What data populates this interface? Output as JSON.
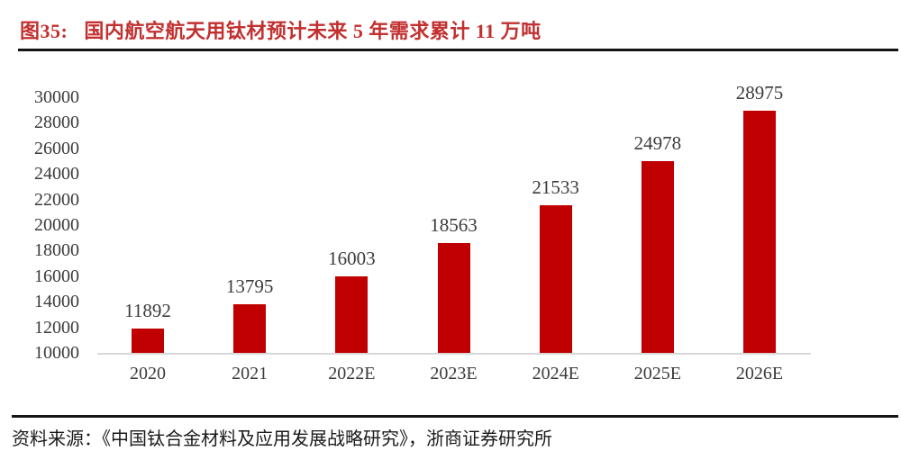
{
  "figure": {
    "label": "图35:",
    "title": "国内航空航天用钛材预计未来 5 年需求累计 11 万吨"
  },
  "source": {
    "prefix": "资料来源：",
    "text": "《中国钛合金材料及应用发展战略研究》，浙商证券研究所"
  },
  "colors": {
    "bar": "#c00000",
    "title_red": "#c23030",
    "axis_line": "#d8d8d8",
    "label_text": "#3b3b3b",
    "rule": "#141414"
  },
  "chart_data": {
    "type": "bar",
    "title": "国内航空航天用钛材预计未来 5 年需求累计 11 万吨",
    "categories": [
      "2020",
      "2021",
      "2022E",
      "2023E",
      "2024E",
      "2025E",
      "2026E"
    ],
    "values": [
      11892,
      13795,
      16003,
      18563,
      21533,
      24978,
      28975
    ],
    "data_labels": [
      "11892",
      "13795",
      "16003",
      "18563",
      "21533",
      "24978",
      "28975"
    ],
    "xlabel": "",
    "ylabel": "",
    "ylim": [
      10000,
      30000
    ],
    "ytick_step": 2000,
    "yticks": [
      30000,
      28000,
      26000,
      24000,
      22000,
      20000,
      18000,
      16000,
      14000,
      12000,
      10000
    ],
    "grid": false,
    "legend_position": "none",
    "bar_color": "#c00000",
    "label_position": "above-bars"
  }
}
